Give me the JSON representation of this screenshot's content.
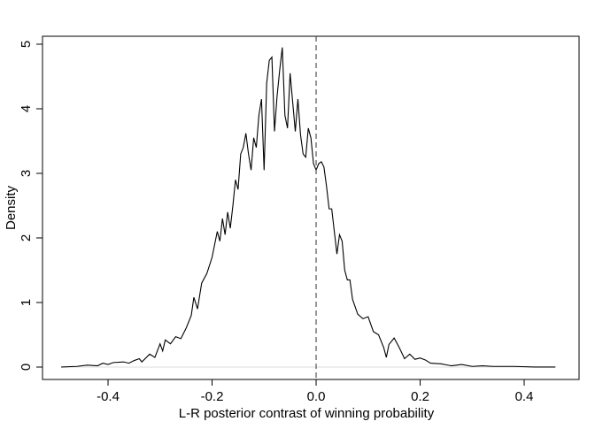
{
  "chart_data": {
    "type": "line",
    "xlabel": "L-R posterior contrast of winning probability",
    "ylabel": "Density",
    "x": [
      -0.49,
      -0.46,
      -0.44,
      -0.42,
      -0.41,
      -0.4,
      -0.39,
      -0.37,
      -0.36,
      -0.35,
      -0.34,
      -0.335,
      -0.32,
      -0.31,
      -0.3,
      -0.295,
      -0.29,
      -0.28,
      -0.27,
      -0.26,
      -0.25,
      -0.24,
      -0.235,
      -0.228,
      -0.22,
      -0.21,
      -0.2,
      -0.19,
      -0.185,
      -0.18,
      -0.175,
      -0.17,
      -0.165,
      -0.16,
      -0.155,
      -0.15,
      -0.145,
      -0.14,
      -0.135,
      -0.13,
      -0.125,
      -0.12,
      -0.115,
      -0.11,
      -0.105,
      -0.1,
      -0.095,
      -0.09,
      -0.085,
      -0.08,
      -0.075,
      -0.07,
      -0.065,
      -0.06,
      -0.055,
      -0.05,
      -0.045,
      -0.04,
      -0.035,
      -0.03,
      -0.025,
      -0.02,
      -0.015,
      -0.01,
      -0.005,
      0,
      0.005,
      0.01,
      0.015,
      0.02,
      0.025,
      0.03,
      0.035,
      0.04,
      0.045,
      0.05,
      0.055,
      0.06,
      0.065,
      0.07,
      0.08,
      0.09,
      0.1,
      0.11,
      0.12,
      0.13,
      0.135,
      0.14,
      0.15,
      0.16,
      0.17,
      0.18,
      0.19,
      0.2,
      0.21,
      0.22,
      0.24,
      0.26,
      0.28,
      0.3,
      0.32,
      0.34,
      0.38,
      0.42,
      0.46
    ],
    "values": [
      0.0,
      0.01,
      0.03,
      0.02,
      0.06,
      0.04,
      0.07,
      0.08,
      0.06,
      0.1,
      0.13,
      0.08,
      0.2,
      0.15,
      0.36,
      0.25,
      0.42,
      0.36,
      0.47,
      0.44,
      0.6,
      0.8,
      1.08,
      0.9,
      1.3,
      1.45,
      1.7,
      2.1,
      1.95,
      2.3,
      2.05,
      2.4,
      2.15,
      2.5,
      2.9,
      2.75,
      3.3,
      3.4,
      3.62,
      3.3,
      3.05,
      3.55,
      3.4,
      3.9,
      4.15,
      3.05,
      4.4,
      4.75,
      4.8,
      3.65,
      4.2,
      4.6,
      4.95,
      3.9,
      3.7,
      4.55,
      4.1,
      3.65,
      4.15,
      3.6,
      3.3,
      3.25,
      3.7,
      3.55,
      3.15,
      3.05,
      3.15,
      3.18,
      3.1,
      2.8,
      2.45,
      2.45,
      2.1,
      1.75,
      2.05,
      1.95,
      1.5,
      1.35,
      1.35,
      1.05,
      0.82,
      0.75,
      0.78,
      0.55,
      0.5,
      0.3,
      0.15,
      0.35,
      0.45,
      0.3,
      0.13,
      0.2,
      0.12,
      0.14,
      0.11,
      0.06,
      0.05,
      0.02,
      0.04,
      0.01,
      0.02,
      0.01,
      0.01,
      0.0,
      0.0
    ],
    "color": "#000000",
    "xlim": [
      -0.526,
      0.5055
    ],
    "ylim": [
      -0.192,
      5.123
    ],
    "xticks": [
      -0.4,
      -0.2,
      {
        "value": 0,
        "label": "0.0"
      },
      0.2,
      0.4
    ],
    "yticks": [
      0,
      1,
      2,
      3,
      4,
      5
    ],
    "vline": 0,
    "hline": 0
  }
}
